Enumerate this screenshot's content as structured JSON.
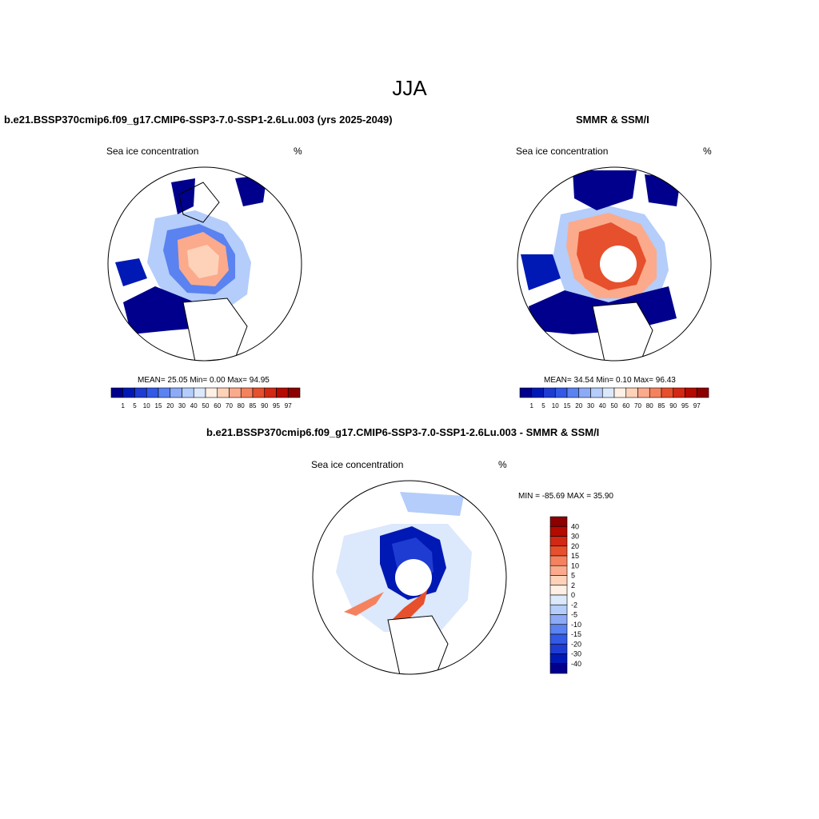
{
  "figure": {
    "title": "JJA"
  },
  "panels": [
    {
      "title": "b.e21.BSSP370cmip6.f09_g17.CMIP6-SSP3-7.0-SSP1-2.6Lu.003 (yrs 2025-2049)",
      "left_label": "Sea ice concentration",
      "right_label": "%",
      "stats": "MEAN=  25.05  Min=   0.00  Max=  94.95"
    },
    {
      "title": "SMMR & SSM/I",
      "left_label": "Sea ice concentration",
      "right_label": "%",
      "stats": "MEAN=  34.54  Min=   0.10  Max=  96.43"
    },
    {
      "title": "b.e21.BSSP370cmip6.f09_g17.CMIP6-SSP3-7.0-SSP1-2.6Lu.003 - SMMR & SSM/I",
      "left_label": "Sea ice concentration",
      "right_label": "%",
      "stats": "MIN = -85.69 MAX =  35.90"
    }
  ],
  "colorbars": {
    "concentration": {
      "labels": [
        "1",
        "5",
        "10",
        "15",
        "20",
        "30",
        "40",
        "50",
        "60",
        "70",
        "80",
        "85",
        "90",
        "95",
        "97"
      ],
      "colors": [
        "#00008c",
        "#0019b4",
        "#1e3cd2",
        "#325ae6",
        "#5a82f0",
        "#8caaf5",
        "#b4cdfa",
        "#dce8fc",
        "#fff0e6",
        "#fdd2b9",
        "#fcaa8c",
        "#f5825f",
        "#e6502d",
        "#d22814",
        "#b40a00",
        "#8c0000"
      ]
    },
    "difference": {
      "labels": [
        "40",
        "30",
        "20",
        "15",
        "10",
        "5",
        "2",
        "0",
        "-2",
        "-5",
        "-10",
        "-15",
        "-20",
        "-30",
        "-40"
      ],
      "colors": [
        "#8c0000",
        "#b40a00",
        "#d22814",
        "#e6502d",
        "#f5825f",
        "#fcaa8c",
        "#fdd2b9",
        "#fff0e6",
        "#dce8fc",
        "#b4cdfa",
        "#8caaf5",
        "#5a82f0",
        "#325ae6",
        "#1e3cd2",
        "#0019b4",
        "#00008c"
      ]
    }
  }
}
